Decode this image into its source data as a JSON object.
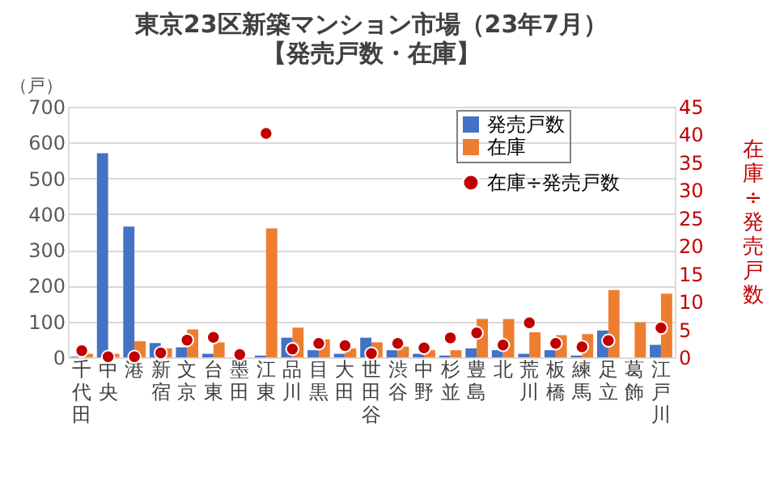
{
  "chart_data": {
    "type": "bar",
    "title": "東京23区新築マンション市場（23年7月）",
    "subtitle": "【発売戸数・在庫】",
    "ylabel": "（戸）",
    "y2label": "在庫÷発売戸数",
    "categories": [
      "千代田",
      "中央",
      "港",
      "新宿",
      "文京",
      "台東",
      "墨田",
      "江東",
      "品川",
      "目黒",
      "大田",
      "世田谷",
      "渋谷",
      "中野",
      "杉並",
      "豊島",
      "北",
      "荒川",
      "板橋",
      "練馬",
      "足立",
      "葛飾",
      "江戸川"
    ],
    "series": [
      {
        "name": "発売戸数",
        "color": "#4472c4",
        "values": [
          2,
          570,
          365,
          40,
          28,
          10,
          0,
          5,
          55,
          20,
          10,
          55,
          20,
          10,
          5,
          25,
          20,
          10,
          20,
          5,
          75,
          0,
          35
        ]
      },
      {
        "name": "在庫",
        "color": "#ed7d31",
        "values": [
          10,
          10,
          45,
          25,
          78,
          42,
          0,
          360,
          83,
          50,
          25,
          42,
          30,
          20,
          20,
          107,
          107,
          70,
          62,
          65,
          188,
          98,
          178
        ]
      },
      {
        "name": "在庫÷発売戸数",
        "color": "#c00000",
        "type": "scatter",
        "axis": "y2",
        "marker": "circle",
        "values": [
          1.2,
          0.1,
          0.1,
          0.8,
          3.1,
          3.6,
          0.5,
          40.2,
          1.5,
          2.5,
          2.1,
          0.7,
          2.5,
          1.7,
          3.5,
          4.4,
          2.2,
          6.2,
          2.5,
          1.9,
          3.0,
          null,
          5.3
        ]
      }
    ],
    "ylim": [
      0,
      700
    ],
    "yticks": [
      0,
      100,
      200,
      300,
      400,
      500,
      600,
      700
    ],
    "y2lim": [
      0,
      45
    ],
    "y2ticks": [
      0,
      5,
      10,
      15,
      20,
      25,
      30,
      35,
      40,
      45
    ],
    "grid": "y",
    "legend": "top right"
  }
}
